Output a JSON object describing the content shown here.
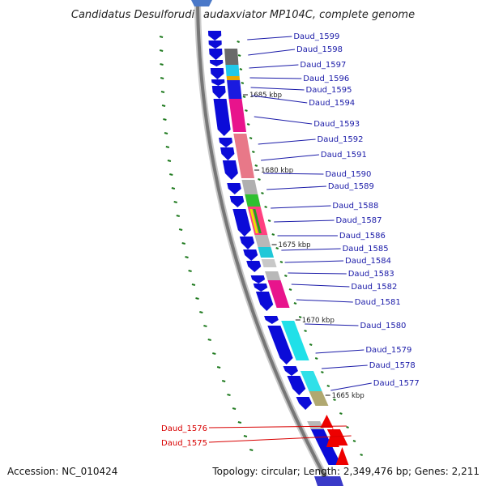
{
  "title": "Candidatus Desulforudis audaxviator MP104C, complete genome",
  "accession": "Accession: NC_010424",
  "summary": "Topology: circular; Length: 2,349,476 bp; Genes: 2,211",
  "colors": {
    "gene_arrow": "#0b0bd8",
    "highlight_gene": "#ee0000",
    "backbone": "#777777",
    "gc_dots": "#1f7a1f",
    "label": "#1a1aa8",
    "highlight_label": "#d80000"
  },
  "kbp_markers": [
    "1685 kbp",
    "1680 kbp",
    "1675 kbp",
    "1670 kbp",
    "1665 kbp"
  ],
  "genes": [
    {
      "label": "Daud_1599",
      "highlight": false
    },
    {
      "label": "Daud_1598",
      "highlight": false
    },
    {
      "label": "Daud_1597",
      "highlight": false
    },
    {
      "label": "Daud_1596",
      "highlight": false
    },
    {
      "label": "Daud_1595",
      "highlight": false
    },
    {
      "label": "Daud_1594",
      "highlight": false
    },
    {
      "label": "Daud_1593",
      "highlight": false
    },
    {
      "label": "Daud_1592",
      "highlight": false
    },
    {
      "label": "Daud_1591",
      "highlight": false
    },
    {
      "label": "Daud_1590",
      "highlight": false
    },
    {
      "label": "Daud_1589",
      "highlight": false
    },
    {
      "label": "Daud_1588",
      "highlight": false
    },
    {
      "label": "Daud_1587",
      "highlight": false
    },
    {
      "label": "Daud_1586",
      "highlight": false
    },
    {
      "label": "Daud_1585",
      "highlight": false
    },
    {
      "label": "Daud_1584",
      "highlight": false
    },
    {
      "label": "Daud_1583",
      "highlight": false
    },
    {
      "label": "Daud_1582",
      "highlight": false
    },
    {
      "label": "Daud_1581",
      "highlight": false
    },
    {
      "label": "Daud_1580",
      "highlight": false
    },
    {
      "label": "Daud_1579",
      "highlight": false
    },
    {
      "label": "Daud_1578",
      "highlight": false
    },
    {
      "label": "Daud_1577",
      "highlight": false
    },
    {
      "label": "Daud_1576",
      "highlight": true
    },
    {
      "label": "Daud_1575",
      "highlight": true
    }
  ]
}
